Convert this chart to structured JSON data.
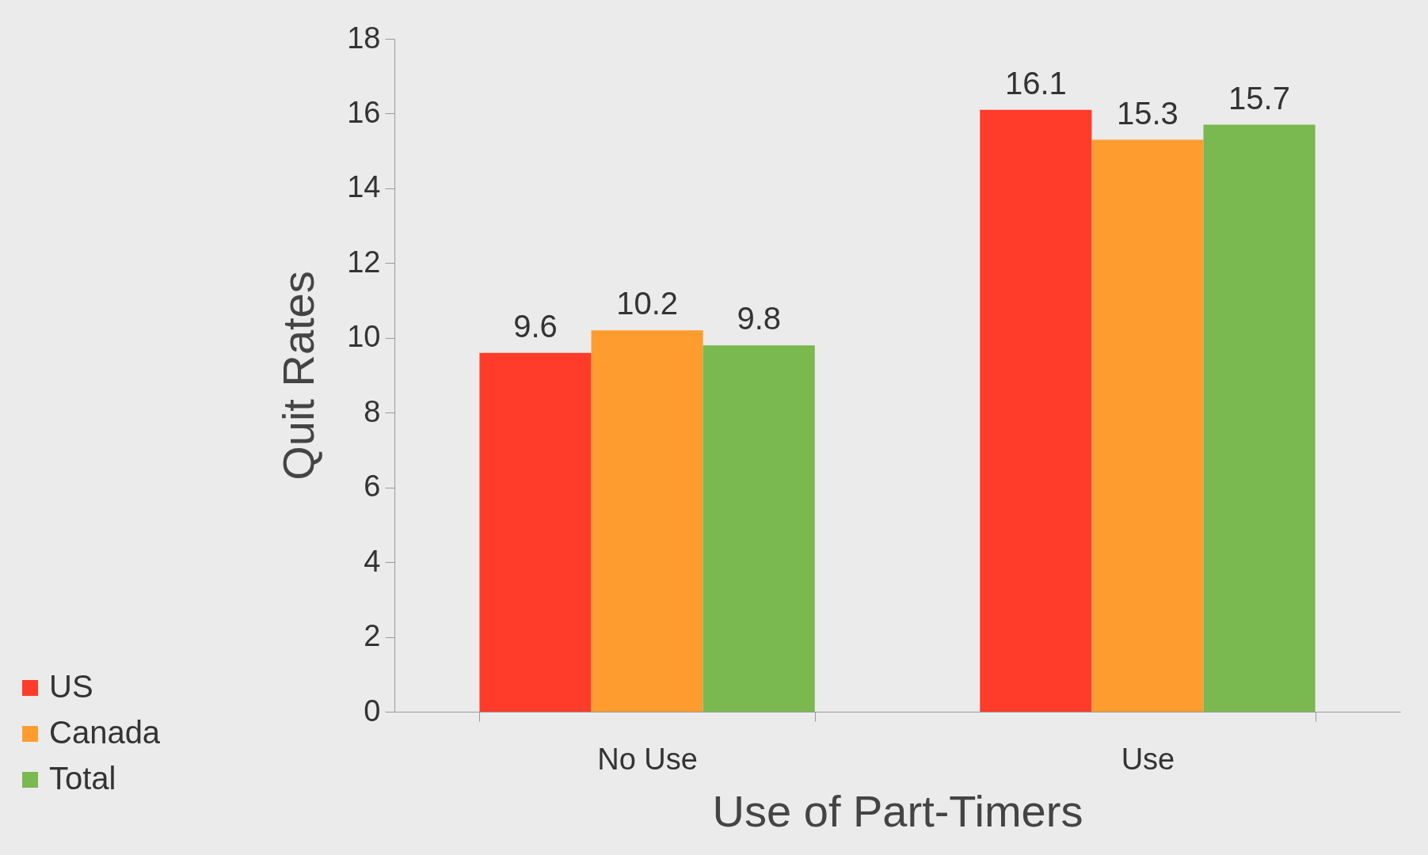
{
  "chart_data": {
    "type": "bar",
    "xlabel": "Use of Part-Timers",
    "ylabel": "Quit Rates",
    "categories": [
      "No Use",
      "Use"
    ],
    "series": [
      {
        "name": "US",
        "color": "#ff3b2a",
        "values": [
          9.6,
          16.1
        ]
      },
      {
        "name": "Canada",
        "color": "#ff9c30",
        "values": [
          10.2,
          15.3
        ]
      },
      {
        "name": "Total",
        "color": "#7ab850",
        "values": [
          9.8,
          15.7
        ]
      }
    ],
    "ylim": [
      0,
      18
    ],
    "yticks": [
      0,
      2,
      4,
      6,
      8,
      10,
      12,
      14,
      16,
      18
    ],
    "grid": false,
    "legend": "bottom left",
    "data_labels": true
  }
}
